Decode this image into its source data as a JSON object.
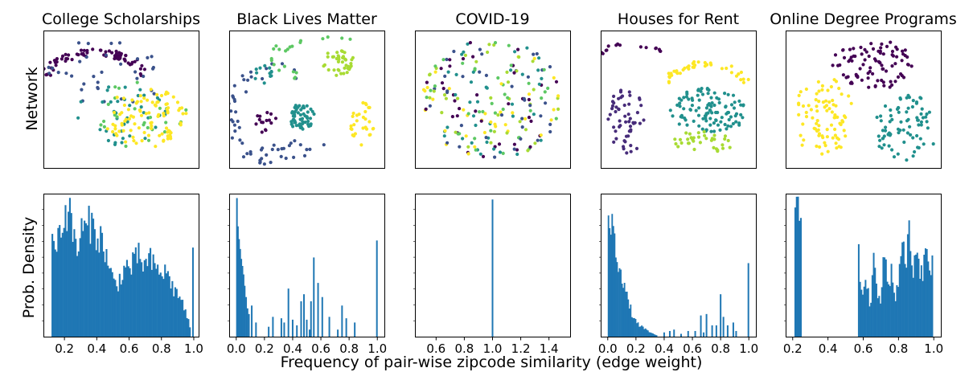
{
  "figure": {
    "row_labels": {
      "network": "Network",
      "density": "Prob. Density"
    },
    "xlabel": "Frequency of pair-wise zipcode similarity (edge weight)",
    "palette": [
      "#440154",
      "#3b528b",
      "#21908d",
      "#5dc863",
      "#fde725",
      "#a8db34",
      "#472c7a"
    ]
  },
  "chart_data": [
    {
      "type": "scatter",
      "panel": "network",
      "title": "College Scholarships",
      "clusters": [
        {
          "cx": 0.33,
          "cy": 0.33,
          "rx": 0.3,
          "ry": 0.17,
          "n": 70,
          "color": "#440154",
          "shape": "ring-upper"
        },
        {
          "cx": 0.4,
          "cy": 0.3,
          "rx": 0.38,
          "ry": 0.25,
          "n": 35,
          "color": "#3b528b",
          "shape": "blob"
        },
        {
          "cx": 0.52,
          "cy": 0.62,
          "rx": 0.34,
          "ry": 0.22,
          "n": 40,
          "color": "#21908d",
          "shape": "blob"
        },
        {
          "cx": 0.62,
          "cy": 0.62,
          "rx": 0.3,
          "ry": 0.24,
          "n": 25,
          "color": "#5dc863",
          "shape": "blob"
        },
        {
          "cx": 0.66,
          "cy": 0.64,
          "rx": 0.27,
          "ry": 0.21,
          "n": 95,
          "color": "#fde725",
          "shape": "blob"
        }
      ]
    },
    {
      "type": "scatter",
      "panel": "network",
      "title": "Black Lives Matter",
      "clusters": [
        {
          "cx": 0.47,
          "cy": 0.63,
          "rx": 0.08,
          "ry": 0.1,
          "n": 55,
          "color": "#21908d",
          "shape": "blob"
        },
        {
          "cx": 0.7,
          "cy": 0.23,
          "rx": 0.1,
          "ry": 0.09,
          "n": 40,
          "color": "#a8db34",
          "shape": "blob"
        },
        {
          "cx": 0.85,
          "cy": 0.68,
          "rx": 0.08,
          "ry": 0.18,
          "n": 30,
          "color": "#fde725",
          "shape": "blob"
        },
        {
          "cx": 0.22,
          "cy": 0.32,
          "rx": 0.05,
          "ry": 0.06,
          "n": 12,
          "color": "#21908d",
          "shape": "ring"
        },
        {
          "cx": 0.23,
          "cy": 0.66,
          "rx": 0.07,
          "ry": 0.07,
          "n": 15,
          "color": "#440154",
          "shape": "blob"
        },
        {
          "cx": 0.3,
          "cy": 0.62,
          "rx": 0.28,
          "ry": 0.34,
          "n": 40,
          "color": "#3b528b",
          "shape": "arc"
        },
        {
          "cx": 0.62,
          "cy": 0.2,
          "rx": 0.32,
          "ry": 0.16,
          "n": 22,
          "color": "#5dc863",
          "shape": "arc"
        },
        {
          "cx": 0.42,
          "cy": 0.85,
          "rx": 0.22,
          "ry": 0.08,
          "n": 18,
          "color": "#3b528b",
          "shape": "blob"
        }
      ]
    },
    {
      "type": "scatter",
      "panel": "network",
      "title": "COVID-19",
      "clusters": [
        {
          "cx": 0.5,
          "cy": 0.5,
          "rx": 0.45,
          "ry": 0.44,
          "n": 220,
          "color": "#21908d",
          "shape": "disc-mixed"
        }
      ]
    },
    {
      "type": "scatter",
      "panel": "network",
      "title": "Houses for Rent",
      "clusters": [
        {
          "cx": 0.2,
          "cy": 0.22,
          "rx": 0.22,
          "ry": 0.12,
          "n": 18,
          "color": "#440154",
          "shape": "arc-top"
        },
        {
          "cx": 0.16,
          "cy": 0.66,
          "rx": 0.12,
          "ry": 0.25,
          "n": 55,
          "color": "#472c7a",
          "shape": "blob"
        },
        {
          "cx": 0.68,
          "cy": 0.38,
          "rx": 0.24,
          "ry": 0.14,
          "n": 40,
          "color": "#fde725",
          "shape": "arc-top"
        },
        {
          "cx": 0.7,
          "cy": 0.58,
          "rx": 0.24,
          "ry": 0.18,
          "n": 110,
          "color": "#21908d",
          "shape": "blob"
        },
        {
          "cx": 0.66,
          "cy": 0.81,
          "rx": 0.2,
          "ry": 0.08,
          "n": 35,
          "color": "#a8db34",
          "shape": "blob"
        }
      ]
    },
    {
      "type": "scatter",
      "panel": "network",
      "title": "Online Degree Programs",
      "clusters": [
        {
          "cx": 0.55,
          "cy": 0.24,
          "rx": 0.26,
          "ry": 0.18,
          "n": 90,
          "color": "#440154",
          "shape": "blob"
        },
        {
          "cx": 0.24,
          "cy": 0.62,
          "rx": 0.19,
          "ry": 0.28,
          "n": 85,
          "color": "#fde725",
          "shape": "blob"
        },
        {
          "cx": 0.77,
          "cy": 0.7,
          "rx": 0.21,
          "ry": 0.24,
          "n": 80,
          "color": "#21908d",
          "shape": "blob"
        }
      ]
    },
    {
      "type": "bar",
      "panel": "density",
      "title": "College Scholarships",
      "xlim": [
        0.07,
        1.03
      ],
      "xticks": [
        "0.2",
        "0.4",
        "0.6",
        "0.8",
        "1.0"
      ],
      "xtick_values": [
        0.2,
        0.4,
        0.6,
        0.8,
        1.0
      ],
      "bins": [
        0.12,
        0.98
      ],
      "nbins": 95,
      "profile": [
        [
          0.12,
          0.62
        ],
        [
          0.15,
          0.7
        ],
        [
          0.17,
          0.74
        ],
        [
          0.2,
          0.85
        ],
        [
          0.22,
          0.92
        ],
        [
          0.25,
          0.75
        ],
        [
          0.28,
          0.6
        ],
        [
          0.3,
          0.74
        ],
        [
          0.33,
          0.76
        ],
        [
          0.36,
          0.8
        ],
        [
          0.4,
          0.73
        ],
        [
          0.42,
          0.7
        ],
        [
          0.45,
          0.62
        ],
        [
          0.48,
          0.46
        ],
        [
          0.5,
          0.4
        ],
        [
          0.52,
          0.36
        ],
        [
          0.55,
          0.43
        ],
        [
          0.58,
          0.5
        ],
        [
          0.6,
          0.48
        ],
        [
          0.63,
          0.52
        ],
        [
          0.66,
          0.57
        ],
        [
          0.68,
          0.53
        ],
        [
          0.7,
          0.5
        ],
        [
          0.73,
          0.54
        ],
        [
          0.76,
          0.48
        ],
        [
          0.8,
          0.46
        ],
        [
          0.84,
          0.44
        ],
        [
          0.88,
          0.32
        ],
        [
          0.92,
          0.28
        ],
        [
          0.94,
          0.2
        ],
        [
          0.97,
          0.1
        ],
        [
          0.98,
          0.02
        ]
      ],
      "extra_bars": [
        {
          "x": 0.995,
          "h": 0.63
        }
      ]
    },
    {
      "type": "bar",
      "panel": "density",
      "title": "Black Lives Matter",
      "xlim": [
        -0.05,
        1.05
      ],
      "xticks": [
        "0.0",
        "0.2",
        "0.4",
        "0.6",
        "0.8",
        "1.0"
      ],
      "xtick_values": [
        0.0,
        0.2,
        0.4,
        0.6,
        0.8,
        1.0
      ],
      "spikes": [
        [
          0.005,
          0.98
        ],
        [
          0.012,
          0.78
        ],
        [
          0.02,
          0.69
        ],
        [
          0.028,
          0.62
        ],
        [
          0.036,
          0.55
        ],
        [
          0.044,
          0.5
        ],
        [
          0.052,
          0.44
        ],
        [
          0.06,
          0.36
        ],
        [
          0.07,
          0.28
        ],
        [
          0.08,
          0.2
        ],
        [
          0.09,
          0.16
        ],
        [
          0.11,
          0.22
        ],
        [
          0.14,
          0.1
        ],
        [
          0.23,
          0.07
        ],
        [
          0.26,
          0.14
        ],
        [
          0.32,
          0.13
        ],
        [
          0.34,
          0.1
        ],
        [
          0.37,
          0.34
        ],
        [
          0.4,
          0.12
        ],
        [
          0.43,
          0.08
        ],
        [
          0.46,
          0.25
        ],
        [
          0.48,
          0.3
        ],
        [
          0.5,
          0.12
        ],
        [
          0.52,
          0.05
        ],
        [
          0.53,
          0.25
        ],
        [
          0.55,
          0.56
        ],
        [
          0.58,
          0.38
        ],
        [
          0.61,
          0.28
        ],
        [
          0.66,
          0.14
        ],
        [
          0.72,
          0.05
        ],
        [
          0.75,
          0.22
        ],
        [
          0.78,
          0.13
        ],
        [
          0.84,
          0.1
        ],
        [
          0.997,
          0.68
        ]
      ]
    },
    {
      "type": "bar",
      "panel": "density",
      "title": "COVID-19",
      "xlim": [
        0.45,
        1.55
      ],
      "xticks": [
        "0.6",
        "0.8",
        "1.0",
        "1.2",
        "1.4"
      ],
      "xtick_values": [
        0.6,
        0.8,
        1.0,
        1.2,
        1.4
      ],
      "spikes": [
        [
          1.0,
          0.97
        ]
      ]
    },
    {
      "type": "bar",
      "panel": "density",
      "title": "Houses for Rent",
      "xlim": [
        -0.05,
        1.05
      ],
      "xticks": [
        "0.0",
        "0.2",
        "0.4",
        "0.6",
        "0.8",
        "1.0"
      ],
      "xtick_values": [
        0.0,
        0.2,
        0.4,
        0.6,
        0.8,
        1.0
      ],
      "bins": [
        0.0,
        0.35
      ],
      "nbins": 40,
      "profile": [
        [
          0.0,
          0.95
        ],
        [
          0.02,
          0.83
        ],
        [
          0.04,
          0.7
        ],
        [
          0.06,
          0.6
        ],
        [
          0.08,
          0.52
        ],
        [
          0.1,
          0.45
        ],
        [
          0.12,
          0.36
        ],
        [
          0.14,
          0.25
        ],
        [
          0.16,
          0.2
        ],
        [
          0.18,
          0.14
        ],
        [
          0.2,
          0.1
        ],
        [
          0.24,
          0.07
        ],
        [
          0.28,
          0.04
        ],
        [
          0.32,
          0.02
        ],
        [
          0.35,
          0.01
        ]
      ],
      "spikes": [
        [
          0.4,
          0.03
        ],
        [
          0.44,
          0.04
        ],
        [
          0.47,
          0.05
        ],
        [
          0.52,
          0.02
        ],
        [
          0.57,
          0.04
        ],
        [
          0.62,
          0.04
        ],
        [
          0.66,
          0.15
        ],
        [
          0.68,
          0.03
        ],
        [
          0.7,
          0.16
        ],
        [
          0.74,
          0.08
        ],
        [
          0.77,
          0.08
        ],
        [
          0.8,
          0.3
        ],
        [
          0.82,
          0.14
        ],
        [
          0.85,
          0.08
        ],
        [
          0.89,
          0.1
        ],
        [
          0.91,
          0.04
        ],
        [
          0.997,
          0.52
        ]
      ]
    },
    {
      "type": "bar",
      "panel": "density",
      "title": "Online Degree Programs",
      "xlim": [
        0.16,
        1.04
      ],
      "xticks": [
        "0.2",
        "0.4",
        "0.6",
        "0.8",
        "1.0"
      ],
      "xtick_values": [
        0.2,
        0.4,
        0.6,
        0.8,
        1.0
      ],
      "bins": [
        0.21,
        0.25
      ],
      "nbins": 5,
      "profile": [
        [
          0.21,
          0.84
        ],
        [
          0.23,
          0.9
        ],
        [
          0.25,
          0.86
        ]
      ],
      "bins2": [
        0.57,
        0.995
      ],
      "nbins2": 55,
      "profile2": [
        [
          0.57,
          0.7
        ],
        [
          0.59,
          0.3
        ],
        [
          0.62,
          0.38
        ],
        [
          0.64,
          0.2
        ],
        [
          0.66,
          0.66
        ],
        [
          0.68,
          0.3
        ],
        [
          0.7,
          0.22
        ],
        [
          0.72,
          0.62
        ],
        [
          0.74,
          0.32
        ],
        [
          0.76,
          0.5
        ],
        [
          0.78,
          0.25
        ],
        [
          0.8,
          0.42
        ],
        [
          0.82,
          0.6
        ],
        [
          0.84,
          0.55
        ],
        [
          0.86,
          0.7
        ],
        [
          0.88,
          0.38
        ],
        [
          0.9,
          0.66
        ],
        [
          0.92,
          0.4
        ],
        [
          0.94,
          0.48
        ],
        [
          0.96,
          0.6
        ],
        [
          0.98,
          0.48
        ],
        [
          0.995,
          0.52
        ]
      ]
    }
  ]
}
